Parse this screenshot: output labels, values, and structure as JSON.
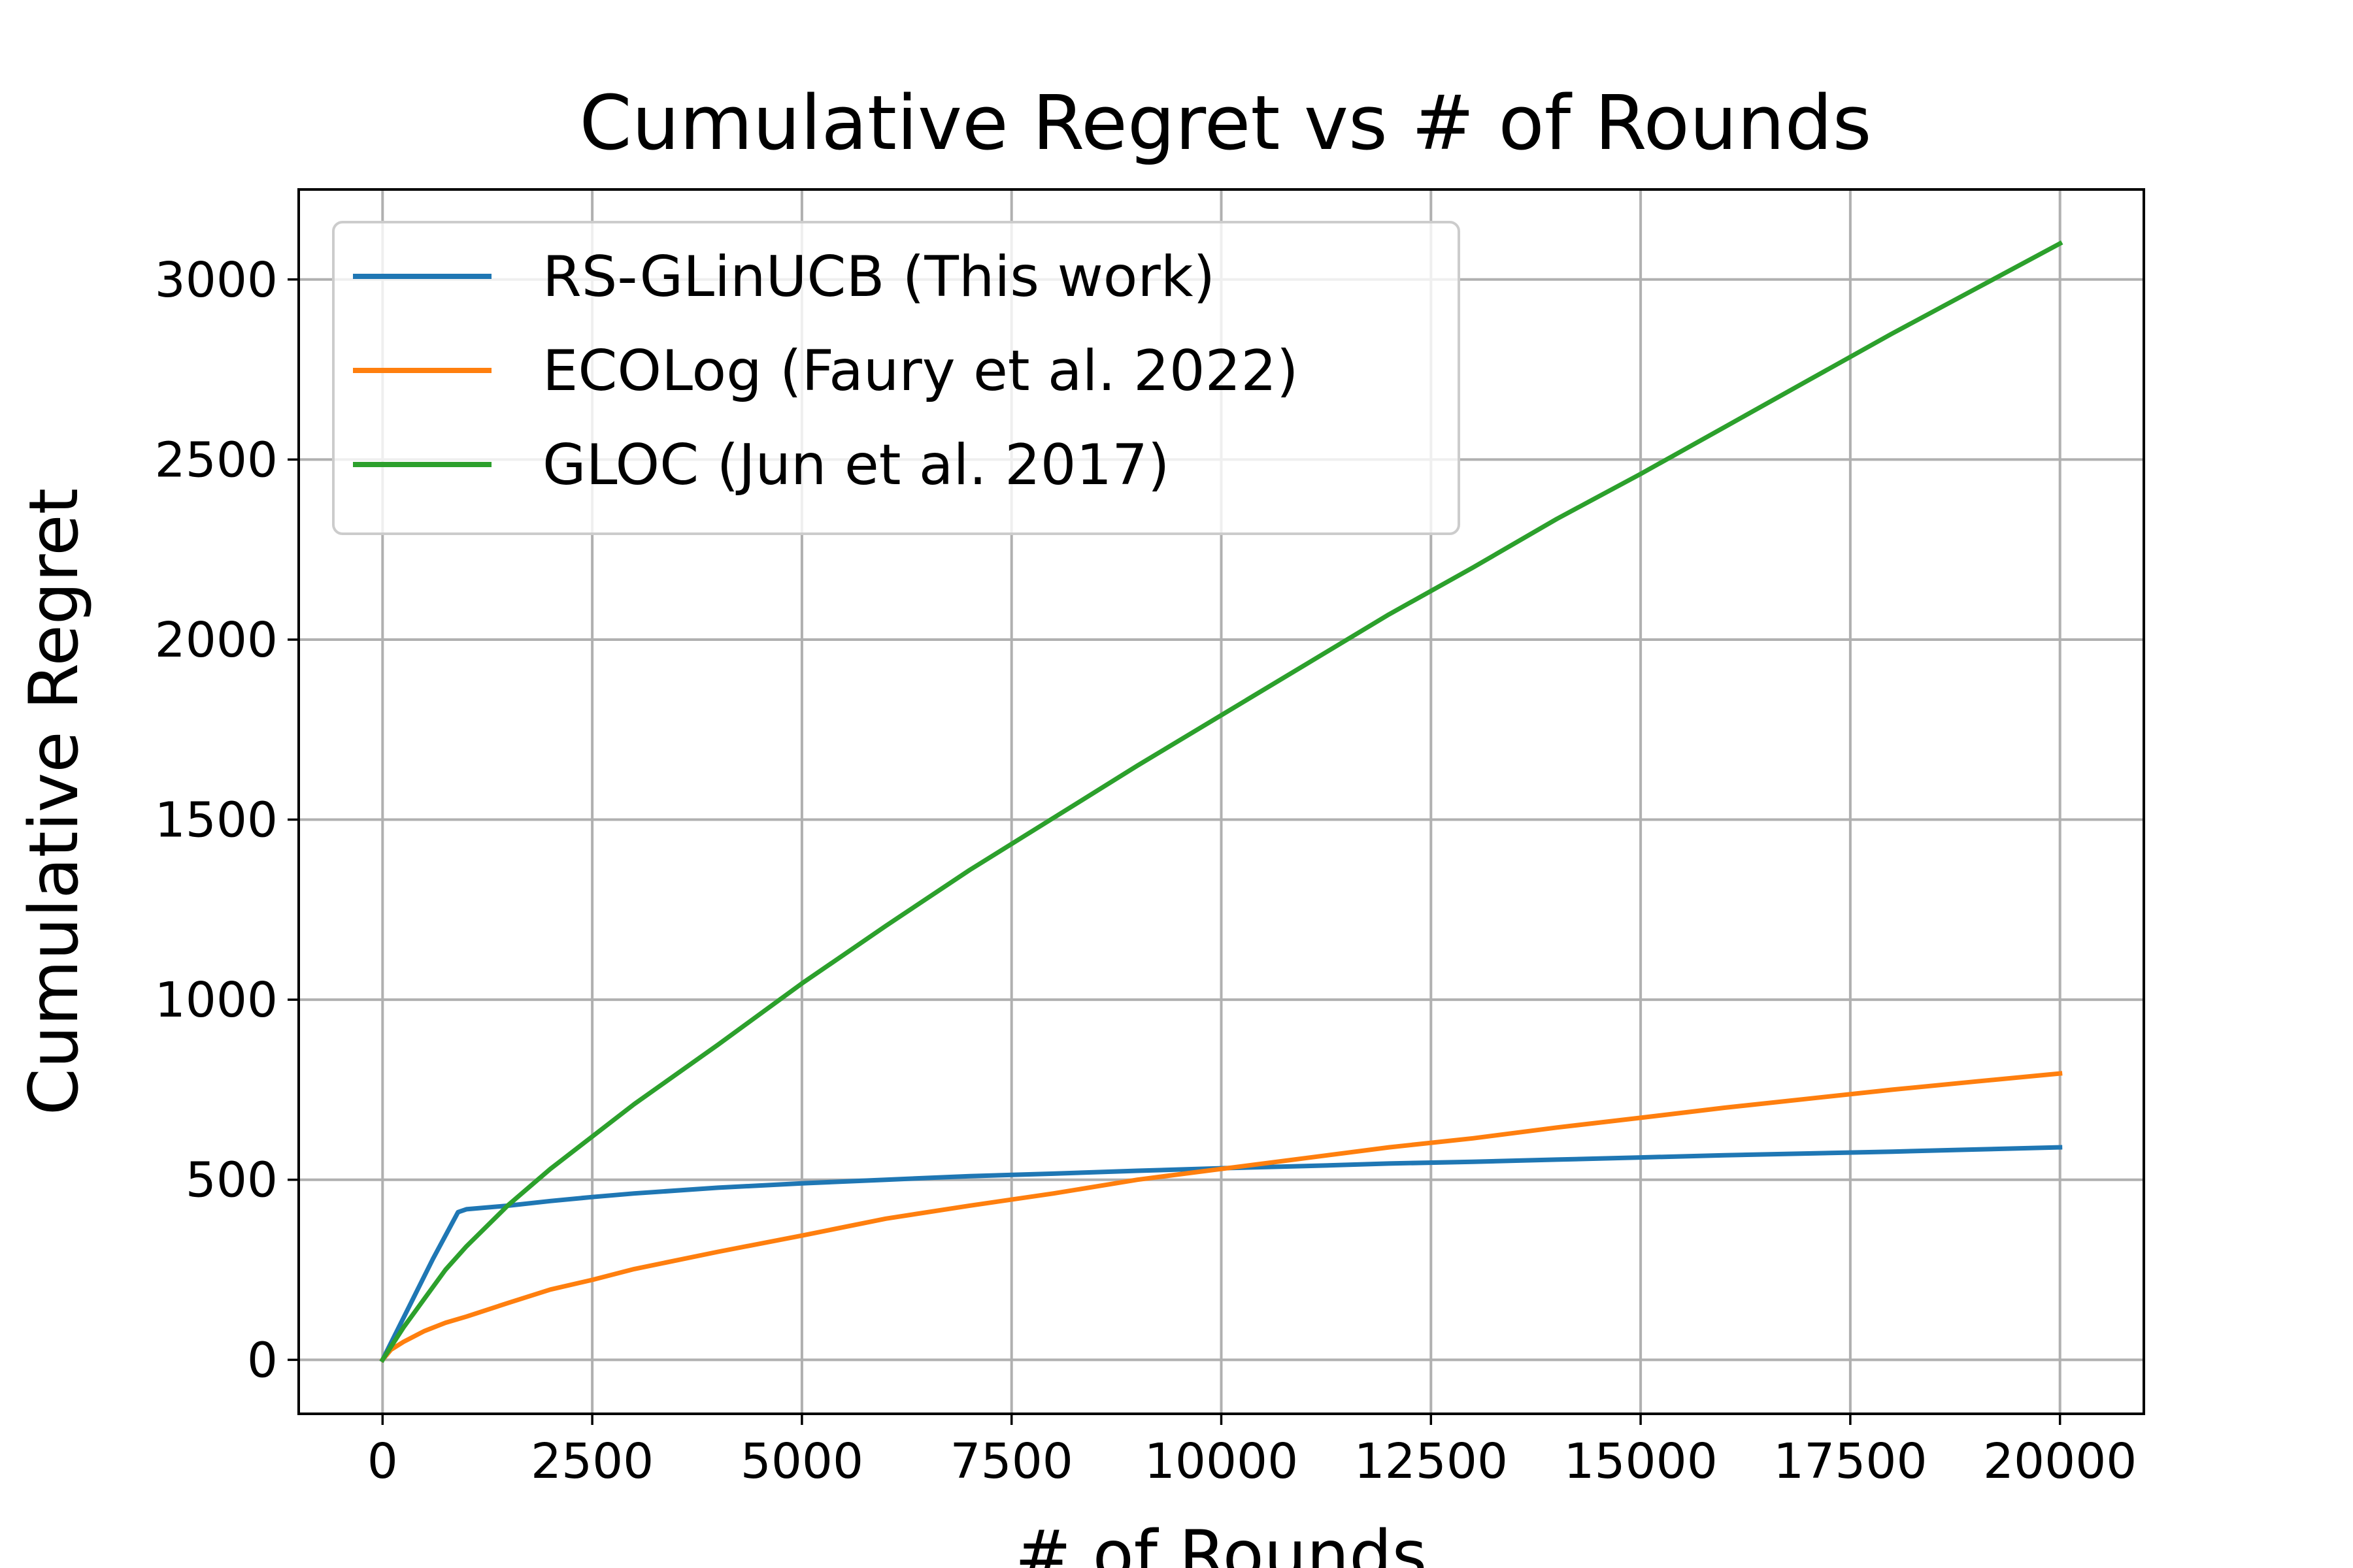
{
  "chart_data": {
    "type": "line",
    "title": "Cumulative Regret vs # of Rounds",
    "xlabel": "# of Rounds",
    "ylabel": "Cumulative Regret",
    "xlim": [
      -1000,
      21000
    ],
    "ylim": [
      -150,
      3250
    ],
    "xticks": [
      0,
      2500,
      5000,
      7500,
      10000,
      12500,
      15000,
      17500,
      20000
    ],
    "yticks": [
      0,
      500,
      1000,
      1500,
      2000,
      2500,
      3000
    ],
    "grid": true,
    "legend_position": "upper-left",
    "series": [
      {
        "name": "RS-GLinUCB (This work)",
        "color": "#1f77b4",
        "x": [
          0,
          300,
          600,
          900,
          1000,
          1500,
          2000,
          2500,
          3000,
          4000,
          5000,
          6000,
          7000,
          8000,
          9000,
          10000,
          11000,
          12000,
          13000,
          14000,
          15000,
          16000,
          17000,
          18000,
          19000,
          20000
        ],
        "y": [
          0,
          140,
          280,
          410,
          418,
          428,
          441,
          452,
          462,
          478,
          490,
          500,
          510,
          517,
          525,
          532,
          538,
          545,
          550,
          556,
          562,
          568,
          573,
          578,
          584,
          590
        ]
      },
      {
        "name": "ECOLog (Faury et al. 2022)",
        "color": "#ff7f0e",
        "x": [
          0,
          100,
          250,
          500,
          750,
          1000,
          1500,
          2000,
          2500,
          3000,
          4000,
          5000,
          6000,
          7000,
          8000,
          9000,
          10000,
          11000,
          12000,
          13000,
          14000,
          15000,
          16000,
          17000,
          18000,
          19000,
          20000
        ],
        "y": [
          0,
          28,
          50,
          80,
          103,
          120,
          158,
          195,
          222,
          252,
          300,
          345,
          392,
          428,
          462,
          500,
          530,
          560,
          590,
          615,
          645,
          672,
          700,
          725,
          750,
          773,
          795
        ]
      },
      {
        "name": "GLOC (Jun et al. 2017)",
        "color": "#2ca02c",
        "x": [
          0,
          250,
          500,
          750,
          1000,
          1500,
          2000,
          2500,
          3000,
          4000,
          5000,
          6000,
          7000,
          8000,
          9000,
          10000,
          11000,
          12000,
          13000,
          14000,
          15000,
          16000,
          17000,
          18000,
          19000,
          20000
        ],
        "y": [
          0,
          90,
          170,
          250,
          315,
          430,
          530,
          620,
          710,
          875,
          1045,
          1205,
          1360,
          1505,
          1650,
          1790,
          1930,
          2070,
          2200,
          2335,
          2460,
          2590,
          2720,
          2850,
          2975,
          3100
        ]
      }
    ]
  }
}
